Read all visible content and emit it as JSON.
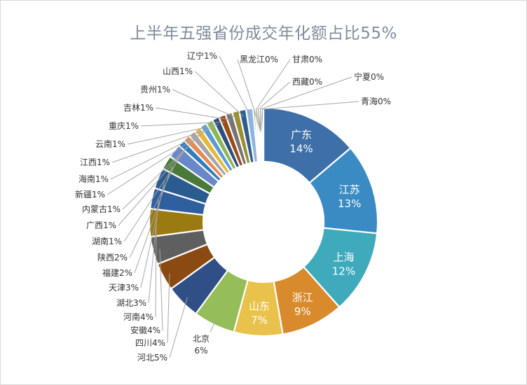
{
  "chart_data": {
    "type": "pie",
    "donut": true,
    "title": "上半年五强省份成交年化额占比55%",
    "legend": "none",
    "categories": [
      "广东",
      "江苏",
      "上海",
      "浙江",
      "山东",
      "北京",
      "河北",
      "四川",
      "安徽",
      "河南",
      "湖北",
      "天津",
      "福建",
      "陕西",
      "湖南",
      "广西",
      "内蒙古",
      "新疆",
      "海南",
      "江西",
      "云南",
      "重庆",
      "吉林",
      "贵州",
      "山西",
      "辽宁",
      "黑龙江",
      "甘肃",
      "西藏",
      "宁夏",
      "青海"
    ],
    "values": [
      14,
      13,
      12,
      9,
      7,
      6,
      5,
      4,
      4,
      4,
      3,
      3,
      2,
      2,
      1,
      1,
      1,
      1,
      1,
      1,
      1,
      1,
      1,
      1,
      1,
      1,
      0,
      0,
      0,
      0,
      0
    ],
    "value_labels": [
      "14%",
      "13%",
      "12%",
      "9%",
      "7%",
      "6%",
      "5%",
      "4%",
      "4%",
      "4%",
      "3%",
      "3%",
      "2%",
      "2%",
      "1%",
      "1%",
      "1%",
      "1%",
      "1%",
      "1%",
      "1%",
      "1%",
      "1%",
      "1%",
      "1%",
      "1%",
      "0%",
      "0%",
      "0%",
      "0%",
      "0%"
    ],
    "colors": [
      "#3e6fa8",
      "#3a8bc4",
      "#3faabc",
      "#d98a2c",
      "#e9c24b",
      "#95bd5a",
      "#2f4f86",
      "#8a4a12",
      "#5f5f5f",
      "#9b7a10",
      "#2f5f9e",
      "#2b5c8f",
      "#4a7a3a",
      "#6a88c8",
      "#2f7dbd",
      "#e48b5a",
      "#a6a6a6",
      "#e6b93a",
      "#5b9bd5",
      "#8fb655",
      "#2e4f7e",
      "#9a4c17",
      "#757575",
      "#9b8e2e",
      "#2f5e8d",
      "#8db3e2",
      "#4f7f3a",
      "#c9a23a",
      "#b7c9e2",
      "#c8a07a",
      "#999999"
    ]
  }
}
